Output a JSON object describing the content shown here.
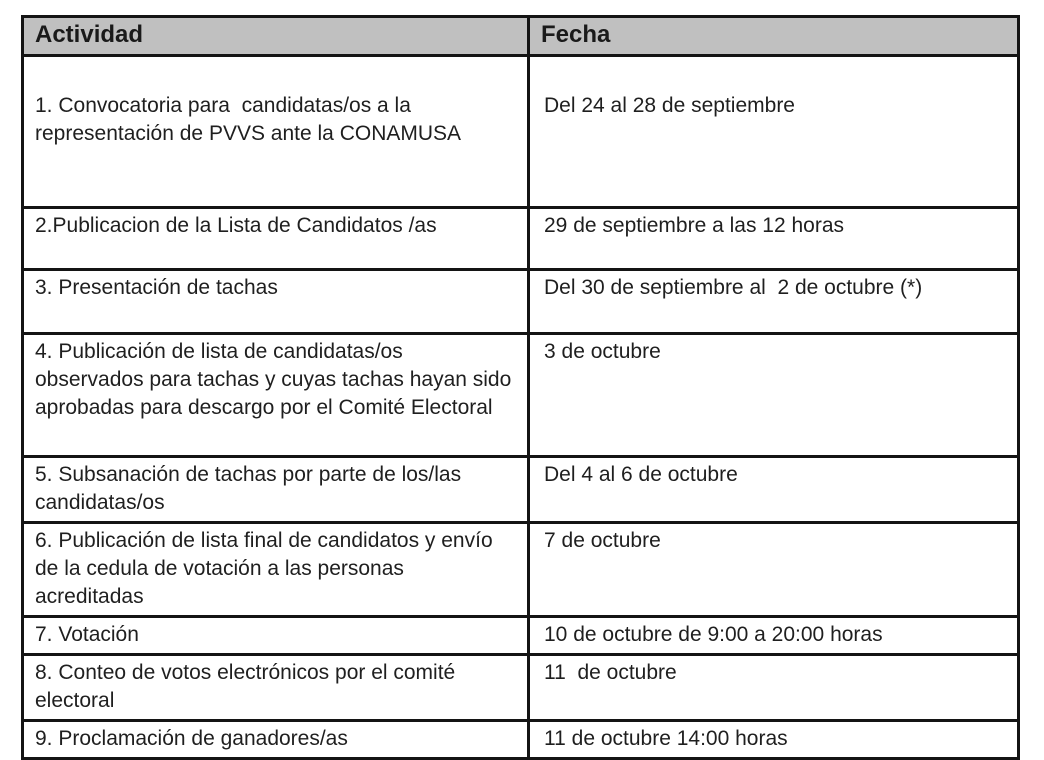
{
  "table": {
    "headers": {
      "actividad": "Actividad",
      "fecha": "Fecha"
    },
    "rows": [
      {
        "actividad": "1. Convocatoria para  candidatas/os a la representación de PVVS ante la CONAMUSA",
        "fecha": "Del 24 al 28 de septiembre"
      },
      {
        "actividad": "2.Publicacion de la Lista de Candidatos /as",
        "fecha": "29 de septiembre a las 12 horas"
      },
      {
        "actividad": "3. Presentación de tachas",
        "fecha": "Del 30 de septiembre al  2 de octubre (*)"
      },
      {
        "actividad": "4. Publicación de lista de candidatas/os observados para tachas y cuyas tachas hayan sido aprobadas para descargo por el Comité Electoral",
        "fecha": "3 de octubre"
      },
      {
        "actividad": "5. Subsanación de tachas por parte de los/las candidatas/os",
        "fecha": "Del 4 al 6 de octubre"
      },
      {
        "actividad": "6. Publicación de lista final de candidatos y envío de la cedula de votación a las personas acreditadas",
        "fecha": "7 de octubre"
      },
      {
        "actividad": "7. Votación",
        "fecha": "10 de octubre de 9:00 a 20:00 horas"
      },
      {
        "actividad": "8. Conteo de votos electrónicos por el comité electoral",
        "fecha": "11  de octubre"
      },
      {
        "actividad": "9. Proclamación de ganadores/as",
        "fecha": "11 de octubre 14:00 horas"
      }
    ],
    "colors": {
      "header_bg": "#c0c0c0",
      "border": "#141414",
      "text": "#1f1f1f"
    }
  }
}
